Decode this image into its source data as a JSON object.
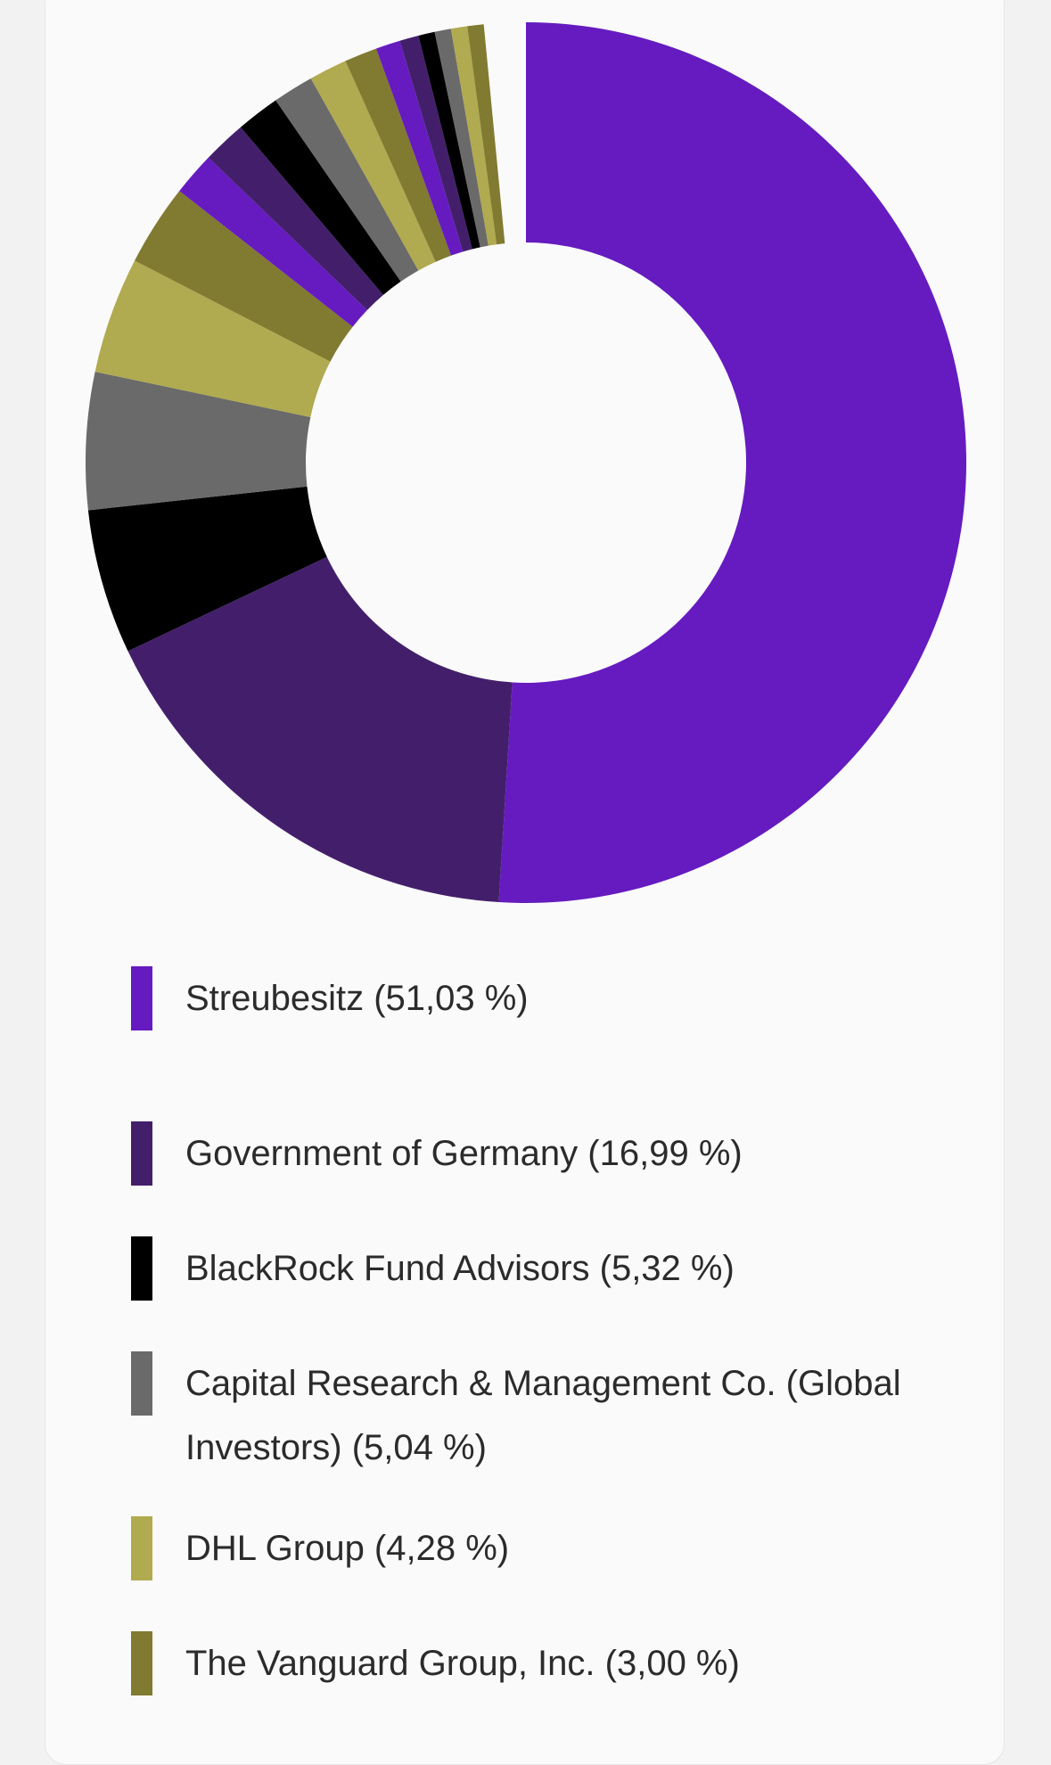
{
  "chart_data": {
    "type": "pie",
    "variant": "donut",
    "title": "",
    "legend_position": "bottom",
    "slices": [
      {
        "name": "Streubesitz",
        "value": 51.03,
        "label": "Streubesitz (51,03 %)",
        "color": "#651bbf",
        "in_legend": true
      },
      {
        "name": "Government of Germany",
        "value": 16.99,
        "label": "Government of Germany (16,99 %)",
        "color": "#431f6b",
        "in_legend": true
      },
      {
        "name": "BlackRock Fund Advisors",
        "value": 5.32,
        "label": "BlackRock Fund Advisors (5,32 %)",
        "color": "#000000",
        "in_legend": true
      },
      {
        "name": "Capital Research & Management Co. (Global Investors)",
        "value": 5.04,
        "label": "Capital Research & Management Co. (Global Investors) (5,04 %)",
        "color": "#6a6a6a",
        "in_legend": true
      },
      {
        "name": "DHL Group",
        "value": 4.28,
        "label": "DHL Group (4,28 %)",
        "color": "#b0aa50",
        "in_legend": true
      },
      {
        "name": "The Vanguard Group, Inc.",
        "value": 3.0,
        "label": "The Vanguard Group, Inc. (3,00 %)",
        "color": "#817a31",
        "in_legend": true
      },
      {
        "name": "",
        "value": 1.6,
        "color": "#651bbf",
        "in_legend": false
      },
      {
        "name": "",
        "value": 1.6,
        "color": "#431f6b",
        "in_legend": false
      },
      {
        "name": "",
        "value": 1.6,
        "color": "#000000",
        "in_legend": false
      },
      {
        "name": "",
        "value": 1.5,
        "color": "#6a6a6a",
        "in_legend": false
      },
      {
        "name": "",
        "value": 1.4,
        "color": "#b0aa50",
        "in_legend": false
      },
      {
        "name": "",
        "value": 1.2,
        "color": "#817a31",
        "in_legend": false
      },
      {
        "name": "",
        "value": 0.9,
        "color": "#651bbf",
        "in_legend": false
      },
      {
        "name": "",
        "value": 0.7,
        "color": "#431f6b",
        "in_legend": false
      },
      {
        "name": "",
        "value": 0.6,
        "color": "#000000",
        "in_legend": false
      },
      {
        "name": "",
        "value": 0.6,
        "color": "#6a6a6a",
        "in_legend": false
      },
      {
        "name": "",
        "value": 0.6,
        "color": "#b0aa50",
        "in_legend": false
      },
      {
        "name": "",
        "value": 0.6,
        "color": "#817a31",
        "in_legend": false
      }
    ]
  }
}
